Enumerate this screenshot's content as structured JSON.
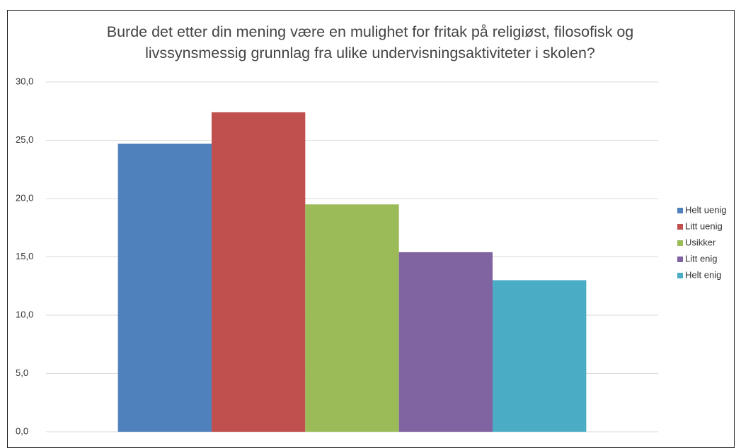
{
  "chart_data": {
    "type": "bar",
    "title": "Burde det etter din mening være en mulighet for fritak på religiøst, filosofisk og livssynsmessig grunnlag fra ulike undervisningsaktiviteter i skolen?",
    "categories": [
      null
    ],
    "series": [
      {
        "name": "Helt uenig",
        "color": "#4f81bd",
        "values": [
          24.7
        ]
      },
      {
        "name": "Litt uenig",
        "color": "#c0504d",
        "values": [
          27.4
        ]
      },
      {
        "name": "Usikker",
        "color": "#9bbb59",
        "values": [
          19.5
        ]
      },
      {
        "name": "Litt enig",
        "color": "#8064a2",
        "values": [
          15.4
        ]
      },
      {
        "name": "Helt enig",
        "color": "#4bacc6",
        "values": [
          13.0
        ]
      }
    ],
    "ylim": [
      0,
      30
    ],
    "yticks": [
      {
        "value": 0,
        "label": "0,0"
      },
      {
        "value": 5,
        "label": "5,0"
      },
      {
        "value": 10,
        "label": "10,0"
      },
      {
        "value": 15,
        "label": "15,0"
      },
      {
        "value": 20,
        "label": "20,0"
      },
      {
        "value": 25,
        "label": "25,0"
      },
      {
        "value": 30,
        "label": "30,0"
      }
    ],
    "grid": true,
    "legend": "right"
  }
}
